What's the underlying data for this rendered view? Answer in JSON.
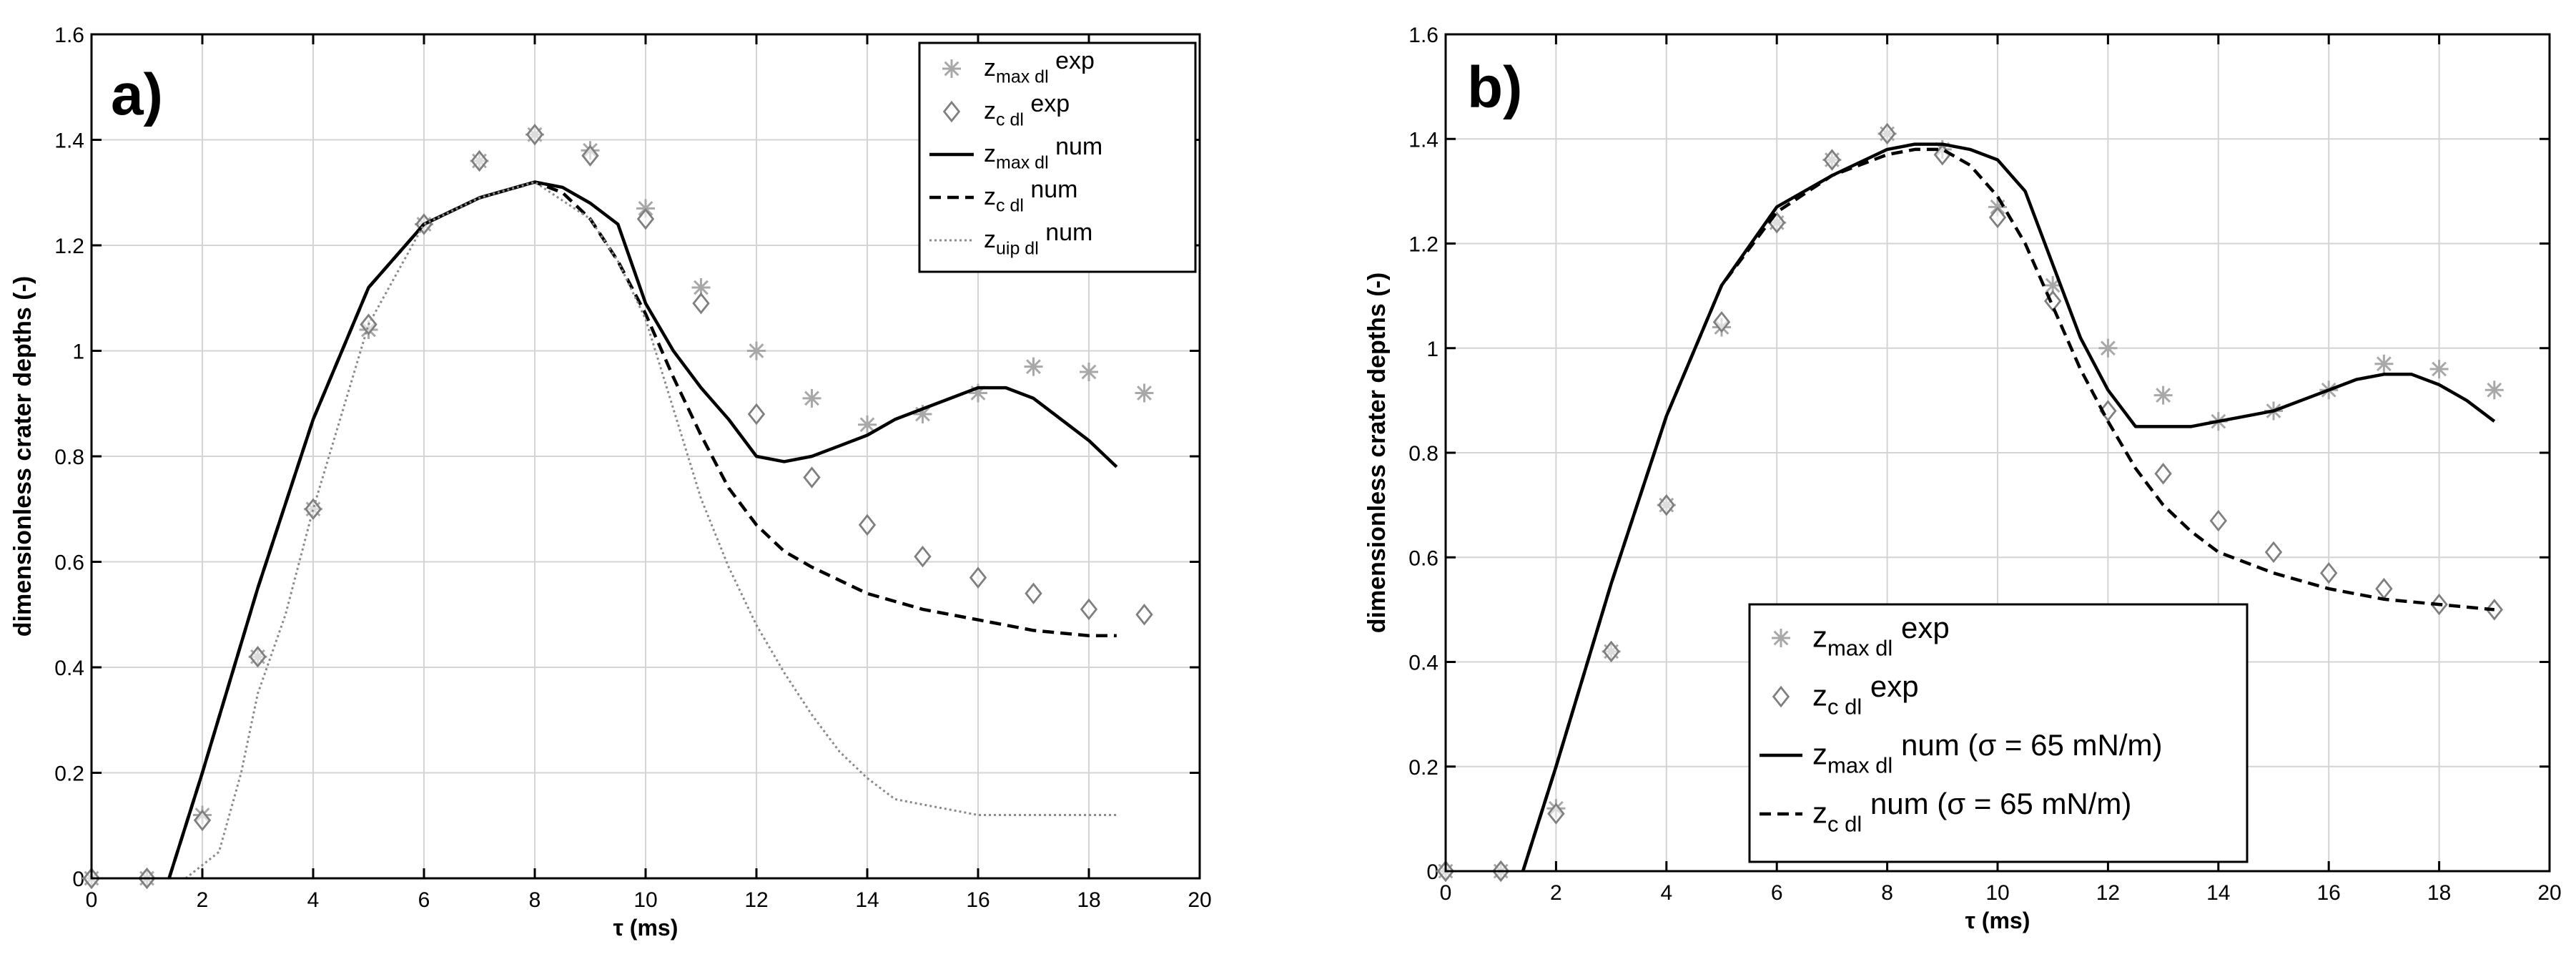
{
  "chart_data": [
    {
      "type": "line",
      "panel_label": "a)",
      "xlabel": "τ (ms)",
      "ylabel": "dimensionless crater depths (-)",
      "xlim": [
        0,
        20
      ],
      "ylim": [
        0,
        1.6
      ],
      "xticks": [
        0,
        2,
        4,
        6,
        8,
        10,
        12,
        14,
        16,
        18,
        20
      ],
      "yticks": [
        0,
        0.2,
        0.4,
        0.6,
        0.8,
        1,
        1.2,
        1.4,
        1.6
      ],
      "ytick_labels": [
        "0",
        "0.2",
        "0.4",
        "0.6",
        "0.8",
        "1",
        "1.2",
        "1.4",
        "1.6"
      ],
      "grid": true,
      "legend_position": "top-right",
      "series": [
        {
          "name": "zmax dl exp",
          "base": "z",
          "sub": "max dl",
          "tail": " exp",
          "kind": "marker",
          "marker": "asterisk",
          "color": "#a8a8a8",
          "x": [
            0,
            1,
            2,
            3,
            4,
            5,
            6,
            7,
            8,
            9,
            10,
            11,
            12,
            13,
            14,
            15,
            16,
            17,
            18,
            19
          ],
          "y": [
            0,
            0,
            0.12,
            0.42,
            0.7,
            1.04,
            1.24,
            1.36,
            1.41,
            1.38,
            1.27,
            1.12,
            1.0,
            0.91,
            0.86,
            0.88,
            0.92,
            0.97,
            0.96,
            0.92
          ]
        },
        {
          "name": "zc dl exp",
          "base": "z",
          "sub": "c dl",
          "tail": " exp",
          "kind": "marker",
          "marker": "diamond",
          "color": "#7f7f7f",
          "x": [
            0,
            1,
            2,
            3,
            4,
            5,
            6,
            7,
            8,
            9,
            10,
            11,
            12,
            13,
            14,
            15,
            16,
            17,
            18,
            19
          ],
          "y": [
            0,
            0,
            0.11,
            0.42,
            0.7,
            1.05,
            1.24,
            1.36,
            1.41,
            1.37,
            1.25,
            1.09,
            0.88,
            0.76,
            0.67,
            0.61,
            0.57,
            0.54,
            0.51,
            0.5
          ]
        },
        {
          "name": "zmax dl num",
          "base": "z",
          "sub": "max dl",
          "tail": " num",
          "kind": "line",
          "dash": "solid",
          "color": "#000000",
          "x": [
            1.4,
            2,
            3,
            4,
            5,
            6,
            7,
            8,
            8.5,
            9,
            9.5,
            10,
            10.5,
            11,
            11.5,
            12,
            12.5,
            13,
            13.5,
            14,
            14.5,
            15,
            15.5,
            16,
            16.5,
            17,
            17.5,
            18,
            18.5
          ],
          "y": [
            0,
            0.2,
            0.55,
            0.87,
            1.12,
            1.24,
            1.29,
            1.32,
            1.31,
            1.28,
            1.24,
            1.09,
            1.0,
            0.93,
            0.87,
            0.8,
            0.79,
            0.8,
            0.82,
            0.84,
            0.87,
            0.89,
            0.91,
            0.93,
            0.93,
            0.91,
            0.87,
            0.83,
            0.78
          ]
        },
        {
          "name": "zc dl num",
          "base": "z",
          "sub": "c dl",
          "tail": " num",
          "kind": "line",
          "dash": "dashed",
          "color": "#000000",
          "x": [
            1.4,
            2,
            3,
            4,
            5,
            6,
            7,
            8,
            8.5,
            9,
            9.5,
            10,
            10.5,
            11,
            11.5,
            12,
            12.5,
            13,
            14,
            15,
            16,
            17,
            18,
            18.5
          ],
          "y": [
            0,
            0.2,
            0.55,
            0.87,
            1.12,
            1.24,
            1.29,
            1.32,
            1.3,
            1.25,
            1.17,
            1.07,
            0.95,
            0.84,
            0.74,
            0.67,
            0.62,
            0.59,
            0.54,
            0.51,
            0.49,
            0.47,
            0.46,
            0.46
          ]
        },
        {
          "name": "zuip dl num",
          "base": "z",
          "sub": "uip dl",
          "tail": " num",
          "kind": "line",
          "dash": "dotted",
          "color": "#8a8a8a",
          "x": [
            1.7,
            2.3,
            2.7,
            3,
            3.5,
            4,
            5,
            6,
            7,
            8,
            9,
            9.5,
            10,
            10.5,
            11,
            11.5,
            12,
            12.5,
            13,
            13.5,
            14,
            14.5,
            15,
            15.5,
            16,
            16.5,
            17,
            17.5,
            18,
            18.5
          ],
          "y": [
            0,
            0.05,
            0.2,
            0.35,
            0.5,
            0.7,
            1.05,
            1.24,
            1.29,
            1.32,
            1.25,
            1.17,
            1.06,
            0.89,
            0.72,
            0.59,
            0.48,
            0.39,
            0.31,
            0.24,
            0.19,
            0.15,
            0.14,
            0.13,
            0.12,
            0.12,
            0.12,
            0.12,
            0.12,
            0.12
          ]
        }
      ]
    },
    {
      "type": "line",
      "panel_label": "b)",
      "xlabel": "τ (ms)",
      "ylabel": "dimensionless crater depths (-)",
      "xlim": [
        0,
        20
      ],
      "ylim": [
        0,
        1.6
      ],
      "xticks": [
        0,
        2,
        4,
        6,
        8,
        10,
        12,
        14,
        16,
        18,
        20
      ],
      "yticks": [
        0,
        0.2,
        0.4,
        0.6,
        0.8,
        1,
        1.2,
        1.4,
        1.6
      ],
      "ytick_labels": [
        "0",
        "0.2",
        "0.4",
        "0.6",
        "0.8",
        "1",
        "1.2",
        "1.4",
        "1.6"
      ],
      "grid": true,
      "legend_position": "bottom-left",
      "series": [
        {
          "name": "zmax dl exp",
          "base": "z",
          "sub": "max dl",
          "tail": " exp",
          "kind": "marker",
          "marker": "asterisk",
          "color": "#a8a8a8",
          "x": [
            0,
            1,
            2,
            3,
            4,
            5,
            6,
            7,
            8,
            9,
            10,
            11,
            12,
            13,
            14,
            15,
            16,
            17,
            18,
            19
          ],
          "y": [
            0,
            0,
            0.12,
            0.42,
            0.7,
            1.04,
            1.24,
            1.36,
            1.41,
            1.38,
            1.27,
            1.12,
            1.0,
            0.91,
            0.86,
            0.88,
            0.92,
            0.97,
            0.96,
            0.92
          ]
        },
        {
          "name": "zc dl exp",
          "base": "z",
          "sub": "c dl",
          "tail": " exp",
          "kind": "marker",
          "marker": "diamond",
          "color": "#7f7f7f",
          "x": [
            0,
            1,
            2,
            3,
            4,
            5,
            6,
            7,
            8,
            9,
            10,
            11,
            12,
            13,
            14,
            15,
            16,
            17,
            18,
            19
          ],
          "y": [
            0,
            0,
            0.11,
            0.42,
            0.7,
            1.05,
            1.24,
            1.36,
            1.41,
            1.37,
            1.25,
            1.09,
            0.88,
            0.76,
            0.67,
            0.61,
            0.57,
            0.54,
            0.51,
            0.5
          ]
        },
        {
          "name": "zmax dl num (σ = 65 mN/m)",
          "base": "z",
          "sub": "max dl",
          "tail": " num (σ = 65 mN/m)",
          "kind": "line",
          "dash": "solid",
          "color": "#000000",
          "x": [
            1.4,
            2,
            3,
            4,
            5,
            6,
            7,
            8,
            8.5,
            9,
            9.5,
            10,
            10.5,
            11,
            11.5,
            12,
            12.5,
            13,
            13.5,
            14,
            15,
            16,
            16.5,
            17,
            17.5,
            18,
            18.5,
            19
          ],
          "y": [
            0,
            0.2,
            0.55,
            0.87,
            1.12,
            1.27,
            1.33,
            1.38,
            1.39,
            1.39,
            1.38,
            1.36,
            1.3,
            1.16,
            1.02,
            0.92,
            0.85,
            0.85,
            0.85,
            0.86,
            0.88,
            0.92,
            0.94,
            0.95,
            0.95,
            0.93,
            0.9,
            0.86
          ]
        },
        {
          "name": "zc dl num (σ = 65 mN/m)",
          "base": "z",
          "sub": "c dl",
          "tail": " num (σ = 65 mN/m)",
          "kind": "line",
          "dash": "dashed",
          "color": "#000000",
          "x": [
            1.4,
            2,
            3,
            4,
            5,
            6,
            7,
            8,
            8.5,
            9,
            9.5,
            10,
            10.5,
            11,
            11.5,
            12,
            12.5,
            13,
            13.5,
            14,
            15,
            16,
            17,
            18,
            19
          ],
          "y": [
            0,
            0.2,
            0.55,
            0.87,
            1.12,
            1.26,
            1.33,
            1.37,
            1.38,
            1.38,
            1.35,
            1.29,
            1.2,
            1.08,
            0.96,
            0.86,
            0.77,
            0.7,
            0.65,
            0.61,
            0.57,
            0.54,
            0.52,
            0.51,
            0.5
          ]
        }
      ]
    }
  ]
}
